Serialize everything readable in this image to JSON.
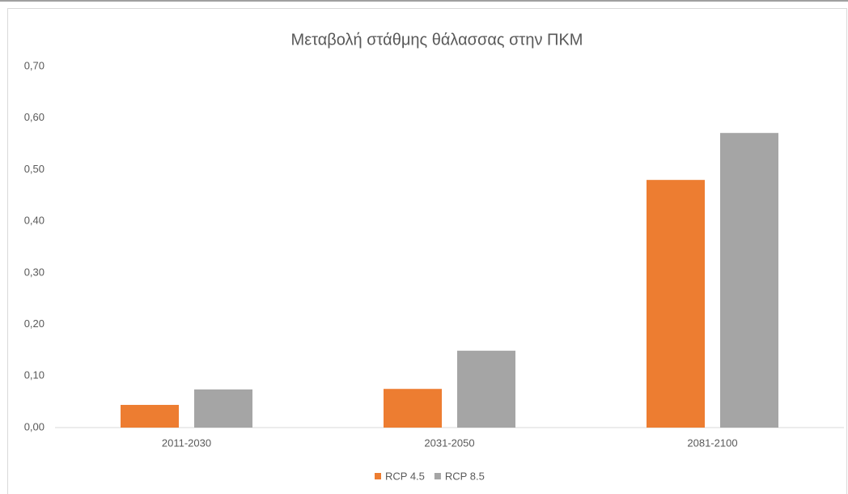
{
  "chart_data": {
    "type": "bar",
    "title": "Μεταβολή στάθμης θάλασσας στην ΠΚΜ",
    "categories": [
      "2011-2030",
      "2031-2050",
      "2081-2100"
    ],
    "series": [
      {
        "name": "RCP 4.5",
        "color": "#ed7d31",
        "values": [
          0.044,
          0.075,
          0.48
        ]
      },
      {
        "name": "RCP 8.5",
        "color": "#a5a5a5",
        "values": [
          0.074,
          0.149,
          0.571
        ]
      }
    ],
    "ylim": [
      0,
      0.7
    ],
    "yticks": [
      {
        "value": 0,
        "label": "0,00"
      },
      {
        "value": 0.1,
        "label": "0,10"
      },
      {
        "value": 0.2,
        "label": "0,20"
      },
      {
        "value": 0.3,
        "label": "0,30"
      },
      {
        "value": 0.4,
        "label": "0,40"
      },
      {
        "value": 0.5,
        "label": "0,50"
      },
      {
        "value": 0.6,
        "label": "0,60"
      },
      {
        "value": 0.7,
        "label": "0,70"
      }
    ],
    "grid": false,
    "legend": "bottom"
  }
}
